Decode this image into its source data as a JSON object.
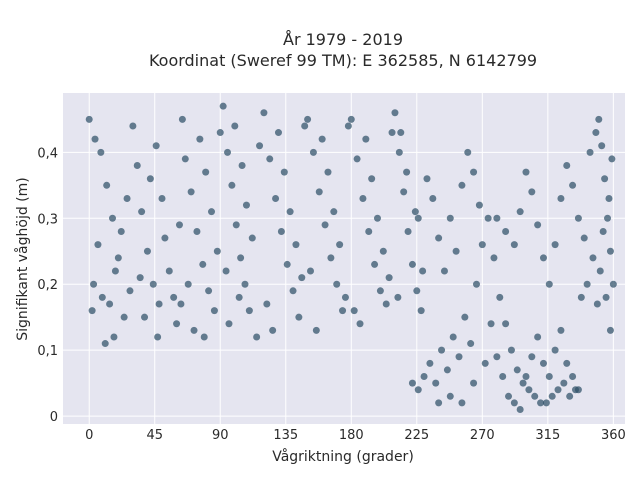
{
  "chart_data": {
    "type": "scatter",
    "title_line1": "År 1979 - 2019",
    "title_line2": "Koordinat (Sweref 99 TM): E 362585, N 6142799",
    "xlabel": "Vågriktning (grader)",
    "ylabel": "Signifikant våghöjd (m)",
    "xlim": [
      -18,
      368
    ],
    "ylim": [
      -0.012,
      0.49
    ],
    "x_ticks": [
      0,
      45,
      90,
      135,
      180,
      225,
      270,
      315,
      360
    ],
    "y_ticks": [
      0,
      0.1,
      0.2,
      0.3,
      0.4
    ],
    "y_tick_labels": [
      "0",
      "0,1",
      "0,2",
      "0,3",
      "0,4"
    ],
    "grid": true,
    "plot_background": "#e5e5f0",
    "marker_color": "#2f5168",
    "marker_opacity": 0.72,
    "series": [
      {
        "points": [
          [
            0,
            0.45
          ],
          [
            4,
            0.42
          ],
          [
            8,
            0.4
          ],
          [
            12,
            0.35
          ],
          [
            16,
            0.3
          ],
          [
            20,
            0.24
          ],
          [
            3,
            0.2
          ],
          [
            9,
            0.18
          ],
          [
            14,
            0.17
          ],
          [
            18,
            0.22
          ],
          [
            22,
            0.28
          ],
          [
            26,
            0.33
          ],
          [
            6,
            0.26
          ],
          [
            11,
            0.11
          ],
          [
            17,
            0.12
          ],
          [
            24,
            0.15
          ],
          [
            2,
            0.16
          ],
          [
            28,
            0.19
          ],
          [
            30,
            0.44
          ],
          [
            33,
            0.38
          ],
          [
            36,
            0.31
          ],
          [
            40,
            0.25
          ],
          [
            44,
            0.2
          ],
          [
            48,
            0.17
          ],
          [
            38,
            0.15
          ],
          [
            42,
            0.36
          ],
          [
            46,
            0.41
          ],
          [
            50,
            0.33
          ],
          [
            52,
            0.27
          ],
          [
            55,
            0.22
          ],
          [
            58,
            0.18
          ],
          [
            60,
            0.14
          ],
          [
            35,
            0.21
          ],
          [
            47,
            0.12
          ],
          [
            62,
            0.29
          ],
          [
            64,
            0.45
          ],
          [
            66,
            0.39
          ],
          [
            70,
            0.34
          ],
          [
            74,
            0.28
          ],
          [
            78,
            0.23
          ],
          [
            82,
            0.19
          ],
          [
            86,
            0.16
          ],
          [
            72,
            0.13
          ],
          [
            76,
            0.42
          ],
          [
            80,
            0.37
          ],
          [
            84,
            0.31
          ],
          [
            68,
            0.2
          ],
          [
            88,
            0.25
          ],
          [
            63,
            0.17
          ],
          [
            79,
            0.12
          ],
          [
            90,
            0.43
          ],
          [
            92,
            0.47
          ],
          [
            95,
            0.4
          ],
          [
            98,
            0.35
          ],
          [
            101,
            0.29
          ],
          [
            104,
            0.24
          ],
          [
            107,
            0.2
          ],
          [
            110,
            0.16
          ],
          [
            96,
            0.14
          ],
          [
            100,
            0.44
          ],
          [
            105,
            0.38
          ],
          [
            108,
            0.32
          ],
          [
            112,
            0.27
          ],
          [
            94,
            0.22
          ],
          [
            103,
            0.18
          ],
          [
            115,
            0.12
          ],
          [
            117,
            0.41
          ],
          [
            120,
            0.46
          ],
          [
            124,
            0.39
          ],
          [
            128,
            0.33
          ],
          [
            132,
            0.28
          ],
          [
            136,
            0.23
          ],
          [
            140,
            0.19
          ],
          [
            144,
            0.15
          ],
          [
            126,
            0.13
          ],
          [
            130,
            0.43
          ],
          [
            134,
            0.37
          ],
          [
            138,
            0.31
          ],
          [
            142,
            0.26
          ],
          [
            146,
            0.21
          ],
          [
            122,
            0.17
          ],
          [
            148,
            0.44
          ],
          [
            150,
            0.45
          ],
          [
            154,
            0.4
          ],
          [
            158,
            0.34
          ],
          [
            162,
            0.29
          ],
          [
            166,
            0.24
          ],
          [
            170,
            0.2
          ],
          [
            174,
            0.16
          ],
          [
            156,
            0.13
          ],
          [
            160,
            0.42
          ],
          [
            164,
            0.37
          ],
          [
            168,
            0.31
          ],
          [
            172,
            0.26
          ],
          [
            152,
            0.22
          ],
          [
            176,
            0.18
          ],
          [
            178,
            0.44
          ],
          [
            180,
            0.45
          ],
          [
            184,
            0.39
          ],
          [
            188,
            0.33
          ],
          [
            192,
            0.28
          ],
          [
            196,
            0.23
          ],
          [
            200,
            0.19
          ],
          [
            204,
            0.17
          ],
          [
            186,
            0.14
          ],
          [
            190,
            0.42
          ],
          [
            194,
            0.36
          ],
          [
            198,
            0.3
          ],
          [
            202,
            0.25
          ],
          [
            206,
            0.21
          ],
          [
            182,
            0.16
          ],
          [
            208,
            0.43
          ],
          [
            210,
            0.46
          ],
          [
            213,
            0.4
          ],
          [
            216,
            0.34
          ],
          [
            219,
            0.28
          ],
          [
            222,
            0.23
          ],
          [
            225,
            0.19
          ],
          [
            228,
            0.16
          ],
          [
            214,
            0.43
          ],
          [
            218,
            0.37
          ],
          [
            212,
            0.18
          ],
          [
            226,
            0.3
          ],
          [
            229,
            0.22
          ],
          [
            224,
            0.31
          ],
          [
            222,
            0.05
          ],
          [
            226,
            0.04
          ],
          [
            230,
            0.06
          ],
          [
            234,
            0.08
          ],
          [
            238,
            0.05
          ],
          [
            242,
            0.1
          ],
          [
            246,
            0.07
          ],
          [
            250,
            0.12
          ],
          [
            254,
            0.09
          ],
          [
            258,
            0.15
          ],
          [
            262,
            0.11
          ],
          [
            266,
            0.2
          ],
          [
            270,
            0.26
          ],
          [
            274,
            0.3
          ],
          [
            278,
            0.24
          ],
          [
            282,
            0.18
          ],
          [
            286,
            0.14
          ],
          [
            290,
            0.1
          ],
          [
            294,
            0.07
          ],
          [
            298,
            0.05
          ],
          [
            302,
            0.04
          ],
          [
            306,
            0.03
          ],
          [
            310,
            0.02
          ],
          [
            314,
            0.02
          ],
          [
            318,
            0.03
          ],
          [
            322,
            0.04
          ],
          [
            326,
            0.05
          ],
          [
            330,
            0.03
          ],
          [
            334,
            0.04
          ],
          [
            240,
            0.02
          ],
          [
            248,
            0.03
          ],
          [
            256,
            0.02
          ],
          [
            264,
            0.05
          ],
          [
            272,
            0.08
          ],
          [
            276,
            0.14
          ],
          [
            280,
            0.09
          ],
          [
            284,
            0.06
          ],
          [
            288,
            0.03
          ],
          [
            292,
            0.02
          ],
          [
            296,
            0.01
          ],
          [
            300,
            0.06
          ],
          [
            304,
            0.09
          ],
          [
            308,
            0.12
          ],
          [
            312,
            0.08
          ],
          [
            316,
            0.06
          ],
          [
            320,
            0.1
          ],
          [
            324,
            0.13
          ],
          [
            328,
            0.08
          ],
          [
            332,
            0.06
          ],
          [
            336,
            0.04
          ],
          [
            232,
            0.36
          ],
          [
            236,
            0.33
          ],
          [
            240,
            0.27
          ],
          [
            244,
            0.22
          ],
          [
            248,
            0.3
          ],
          [
            252,
            0.25
          ],
          [
            256,
            0.35
          ],
          [
            260,
            0.4
          ],
          [
            264,
            0.37
          ],
          [
            268,
            0.32
          ],
          [
            280,
            0.3
          ],
          [
            286,
            0.28
          ],
          [
            292,
            0.26
          ],
          [
            296,
            0.31
          ],
          [
            300,
            0.37
          ],
          [
            304,
            0.34
          ],
          [
            308,
            0.29
          ],
          [
            312,
            0.24
          ],
          [
            316,
            0.2
          ],
          [
            320,
            0.26
          ],
          [
            324,
            0.33
          ],
          [
            328,
            0.38
          ],
          [
            332,
            0.35
          ],
          [
            336,
            0.3
          ],
          [
            340,
            0.27
          ],
          [
            344,
            0.4
          ],
          [
            348,
            0.43
          ],
          [
            350,
            0.45
          ],
          [
            352,
            0.41
          ],
          [
            354,
            0.36
          ],
          [
            356,
            0.3
          ],
          [
            358,
            0.25
          ],
          [
            360,
            0.2
          ],
          [
            355,
            0.18
          ],
          [
            351,
            0.22
          ],
          [
            357,
            0.33
          ],
          [
            353,
            0.28
          ],
          [
            359,
            0.39
          ],
          [
            346,
            0.24
          ],
          [
            342,
            0.2
          ],
          [
            338,
            0.18
          ],
          [
            358,
            0.13
          ],
          [
            349,
            0.17
          ]
        ]
      }
    ]
  }
}
